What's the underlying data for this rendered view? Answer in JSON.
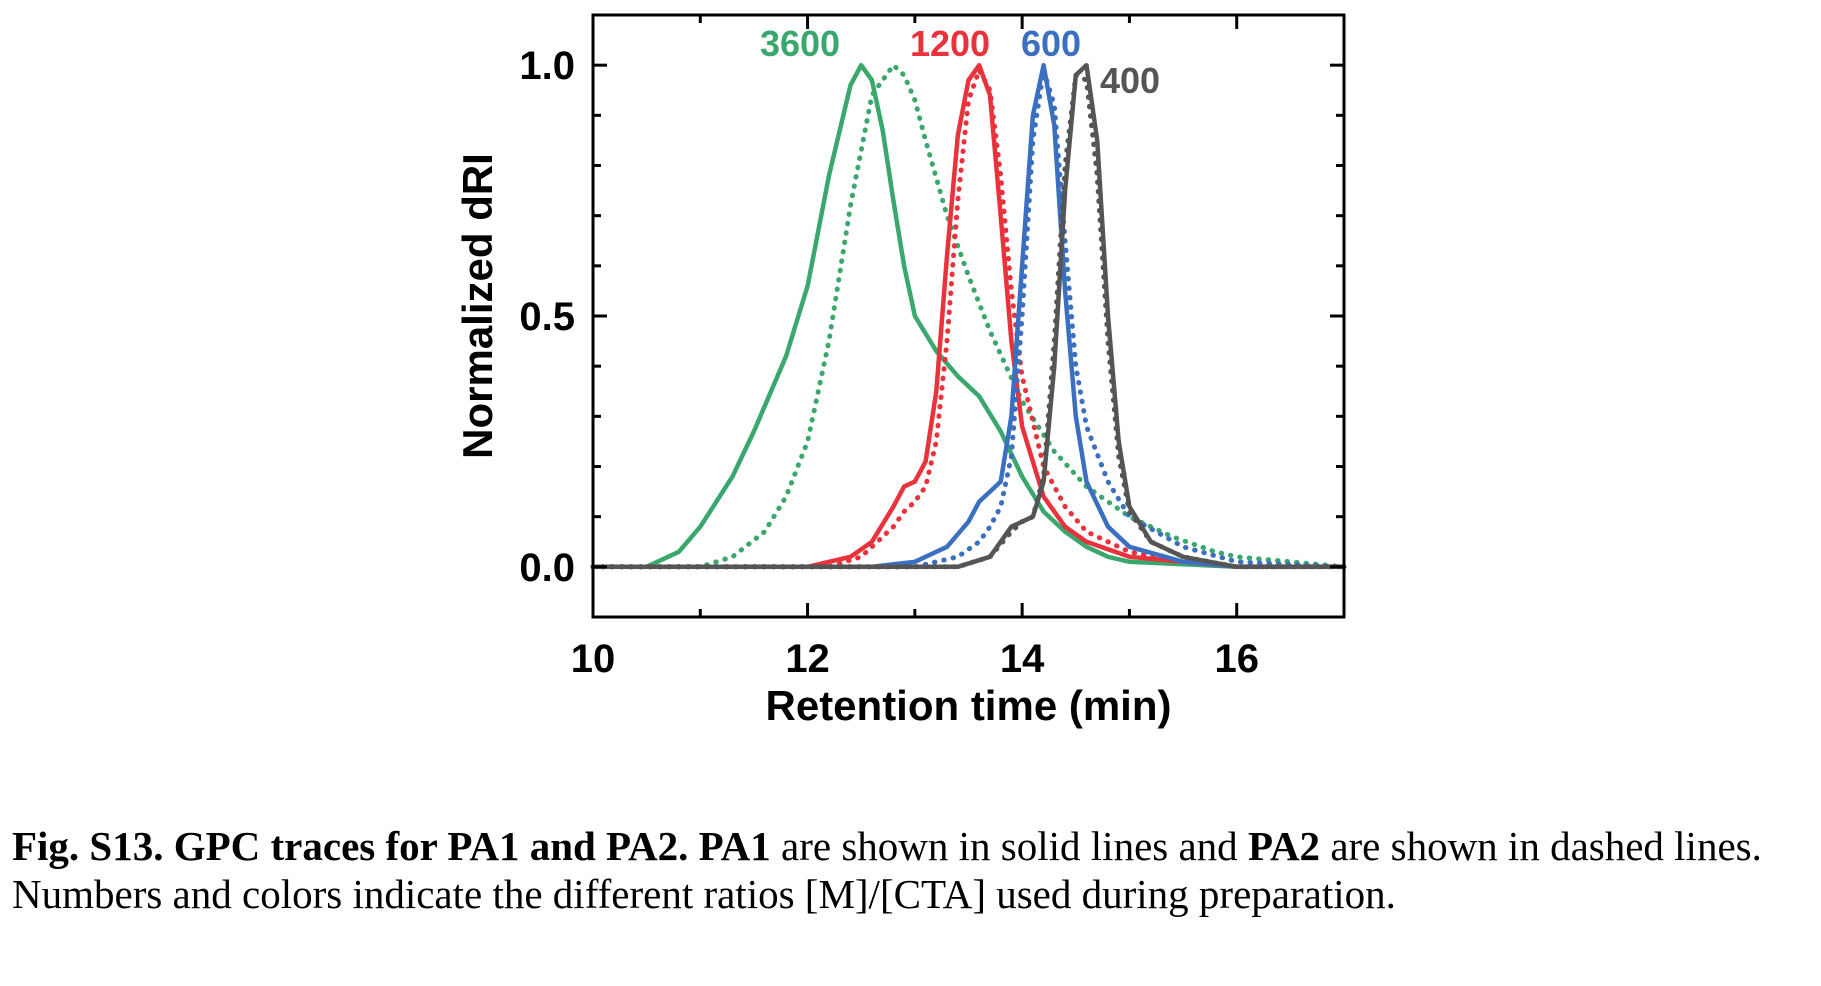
{
  "chart_data": {
    "type": "line",
    "xlabel": "Retention time (min)",
    "ylabel": "Normalized dRI",
    "xlim": [
      10,
      17
    ],
    "ylim": [
      -0.1,
      1.1
    ],
    "x_ticks": [
      "10",
      "12",
      "14",
      "16"
    ],
    "y_ticks": [
      "0.0",
      "0.5",
      "1.0"
    ],
    "grid": false,
    "series": [
      {
        "name": "3600",
        "color": "#3aa76d",
        "style": "solid",
        "x": [
          10.0,
          10.5,
          10.8,
          11.0,
          11.3,
          11.5,
          11.8,
          12.0,
          12.2,
          12.4,
          12.5,
          12.6,
          12.7,
          12.8,
          12.9,
          13.0,
          13.2,
          13.4,
          13.6,
          13.8,
          14.0,
          14.2,
          14.4,
          14.6,
          14.8,
          15.0,
          15.5,
          16.0,
          17.0
        ],
        "y": [
          0.0,
          0.0,
          0.03,
          0.08,
          0.18,
          0.27,
          0.42,
          0.56,
          0.78,
          0.96,
          1.0,
          0.97,
          0.87,
          0.73,
          0.6,
          0.5,
          0.43,
          0.38,
          0.34,
          0.27,
          0.18,
          0.11,
          0.07,
          0.04,
          0.02,
          0.01,
          0.005,
          0.0,
          0.0
        ]
      },
      {
        "name": "3600",
        "color": "#3aa76d",
        "style": "dashed",
        "x": [
          10.0,
          11.0,
          11.3,
          11.6,
          11.8,
          12.0,
          12.2,
          12.4,
          12.6,
          12.8,
          12.9,
          13.0,
          13.1,
          13.3,
          13.5,
          13.7,
          14.0,
          14.3,
          14.6,
          15.0,
          15.4,
          15.8,
          16.0,
          16.5,
          17.0
        ],
        "y": [
          0.0,
          0.0,
          0.02,
          0.07,
          0.14,
          0.25,
          0.45,
          0.72,
          0.94,
          1.0,
          0.98,
          0.93,
          0.85,
          0.7,
          0.58,
          0.47,
          0.33,
          0.23,
          0.16,
          0.1,
          0.06,
          0.03,
          0.02,
          0.01,
          0.0
        ]
      },
      {
        "name": "1200",
        "color": "#e8323c",
        "style": "solid",
        "x": [
          10.0,
          12.0,
          12.4,
          12.6,
          12.8,
          12.9,
          13.0,
          13.1,
          13.2,
          13.3,
          13.4,
          13.5,
          13.6,
          13.7,
          13.8,
          13.9,
          14.0,
          14.2,
          14.4,
          14.6,
          15.0,
          15.5,
          16.0,
          17.0
        ],
        "y": [
          0.0,
          0.0,
          0.02,
          0.05,
          0.12,
          0.16,
          0.17,
          0.21,
          0.35,
          0.62,
          0.86,
          0.97,
          1.0,
          0.94,
          0.7,
          0.45,
          0.28,
          0.14,
          0.08,
          0.05,
          0.02,
          0.01,
          0.0,
          0.0
        ]
      },
      {
        "name": "1200",
        "color": "#e8323c",
        "style": "dashed",
        "x": [
          10.0,
          12.2,
          12.5,
          12.8,
          12.9,
          13.0,
          13.1,
          13.2,
          13.3,
          13.4,
          13.5,
          13.6,
          13.7,
          13.8,
          13.9,
          14.0,
          14.2,
          14.4,
          14.6,
          15.0,
          15.5,
          16.0,
          17.0
        ],
        "y": [
          0.0,
          0.0,
          0.02,
          0.08,
          0.11,
          0.13,
          0.16,
          0.25,
          0.45,
          0.73,
          0.93,
          0.99,
          0.95,
          0.78,
          0.55,
          0.38,
          0.2,
          0.12,
          0.07,
          0.03,
          0.01,
          0.0,
          0.0
        ]
      },
      {
        "name": "600",
        "color": "#3b6fbf",
        "style": "solid",
        "x": [
          10.0,
          12.6,
          13.0,
          13.3,
          13.5,
          13.6,
          13.7,
          13.8,
          13.9,
          14.0,
          14.1,
          14.2,
          14.3,
          14.4,
          14.5,
          14.6,
          14.8,
          15.0,
          15.5,
          16.0,
          17.0
        ],
        "y": [
          0.0,
          0.0,
          0.01,
          0.04,
          0.09,
          0.13,
          0.15,
          0.17,
          0.3,
          0.6,
          0.9,
          1.0,
          0.88,
          0.55,
          0.3,
          0.17,
          0.08,
          0.04,
          0.01,
          0.0,
          0.0
        ]
      },
      {
        "name": "600",
        "color": "#3b6fbf",
        "style": "dashed",
        "x": [
          10.0,
          13.0,
          13.4,
          13.6,
          13.7,
          13.8,
          13.9,
          14.0,
          14.1,
          14.2,
          14.3,
          14.4,
          14.5,
          14.6,
          14.8,
          15.0,
          15.5,
          16.0,
          17.0
        ],
        "y": [
          0.0,
          0.0,
          0.02,
          0.05,
          0.08,
          0.12,
          0.22,
          0.5,
          0.85,
          0.99,
          0.92,
          0.65,
          0.4,
          0.28,
          0.17,
          0.1,
          0.04,
          0.01,
          0.0
        ]
      },
      {
        "name": "400",
        "color": "#555555",
        "style": "solid",
        "x": [
          10.0,
          13.4,
          13.7,
          13.9,
          14.0,
          14.1,
          14.2,
          14.3,
          14.4,
          14.5,
          14.6,
          14.7,
          14.8,
          14.9,
          15.0,
          15.2,
          15.5,
          16.0,
          17.0
        ],
        "y": [
          0.0,
          0.0,
          0.02,
          0.08,
          0.09,
          0.1,
          0.17,
          0.4,
          0.75,
          0.98,
          1.0,
          0.85,
          0.5,
          0.25,
          0.12,
          0.05,
          0.02,
          0.0,
          0.0
        ]
      },
      {
        "name": "400",
        "color": "#555555",
        "style": "dashed",
        "x": [
          10.0,
          13.4,
          13.7,
          13.9,
          14.0,
          14.1,
          14.2,
          14.3,
          14.4,
          14.5,
          14.6,
          14.7,
          14.8,
          14.9,
          15.0,
          15.2,
          15.5,
          16.0,
          17.0
        ],
        "y": [
          0.0,
          0.0,
          0.02,
          0.07,
          0.09,
          0.1,
          0.18,
          0.45,
          0.8,
          0.98,
          0.97,
          0.78,
          0.45,
          0.22,
          0.11,
          0.05,
          0.02,
          0.0,
          0.0
        ]
      }
    ],
    "annotations": [
      {
        "text": "3600",
        "color": "#3aa76d"
      },
      {
        "text": "1200",
        "color": "#e8323c"
      },
      {
        "text": "600",
        "color": "#3b6fbf"
      },
      {
        "text": "400",
        "color": "#555555"
      }
    ]
  },
  "caption": {
    "label": "Fig. S13. GPC traces for PA1 and PA2.",
    "pa1": "PA1",
    "text_1": " are shown in solid lines and ",
    "pa2": "PA2",
    "text_2": " are shown in dashed lines. Numbers and colors indicate the different ratios [M]/[CTA] used during preparation."
  }
}
